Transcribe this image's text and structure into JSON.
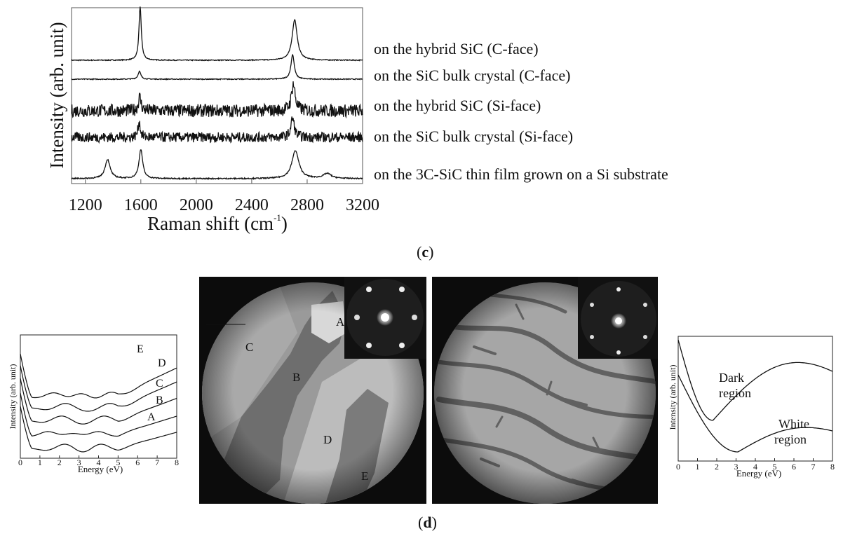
{
  "panel_c": {
    "label": "c",
    "ylabel": "Intensity (arb. unit)",
    "xlabel": "Raman shift (cm",
    "xlabel_sup": "-1",
    "xlabel_close": ")"
  },
  "panel_d": {
    "label": "d",
    "left_ylabel": "Intensity (arb. unit)",
    "left_xlabel": "Energy (eV)",
    "right_ylabel": "Intensity (arb. unit)",
    "right_xlabel": "Energy (eV)",
    "right_dark_label": [
      "Dark",
      "region"
    ],
    "right_white_label": [
      "White",
      "region"
    ],
    "leem_left_region_labels": [
      "A",
      "B",
      "C",
      "D",
      "E"
    ]
  },
  "chart_data": [
    {
      "type": "line",
      "xlim": [
        1100,
        3200
      ],
      "xticks": [
        1200,
        1600,
        2000,
        2400,
        2800,
        3200
      ],
      "xlabel": "Raman shift (cm-1)",
      "ylabel": "Intensity (arb. unit)",
      "legend_placement": "right of each trace",
      "series": [
        {
          "name": "on the hybrid SiC (C-face)",
          "noise": 0.006,
          "peaks": [
            [
              1595,
              2.4,
              10
            ],
            [
              2710,
              1.8,
              22
            ]
          ]
        },
        {
          "name": "on the SiC bulk crystal (C-face)",
          "noise": 0.006,
          "peaks": [
            [
              1590,
              0.35,
              12
            ],
            [
              2695,
              1.1,
              14
            ]
          ]
        },
        {
          "name": "on the hybrid SiC (Si-face)",
          "noise": 0.09,
          "peaks": [
            [
              1592,
              0.6,
              12
            ],
            [
              2700,
              1.2,
              16
            ]
          ]
        },
        {
          "name": "on the SiC bulk crystal (Si-face)",
          "noise": 0.07,
          "peaks": [
            [
              1588,
              0.7,
              10
            ],
            [
              2695,
              0.85,
              15
            ]
          ]
        },
        {
          "name": "on the 3C-SiC thin film grown on a Si substrate",
          "noise": 0.008,
          "peaks": [
            [
              1360,
              0.85,
              22
            ],
            [
              1600,
              1.3,
              16
            ],
            [
              2715,
              1.25,
              30
            ],
            [
              2945,
              0.22,
              35
            ]
          ]
        }
      ]
    },
    {
      "type": "line",
      "xlim": [
        0,
        8
      ],
      "xticks": [
        0,
        1,
        2,
        3,
        4,
        5,
        6,
        7,
        8
      ],
      "xlabel": "Energy (eV)",
      "ylabel": "Intensity (arb. unit)",
      "series": [
        {
          "name": "A",
          "min_positions": [
            0.6,
            2.3,
            4.1
          ],
          "end_level": 0.55
        },
        {
          "name": "B",
          "min_positions": [
            0.6,
            1.5,
            2.7,
            3.9
          ],
          "end_level": 0.62
        },
        {
          "name": "C",
          "min_positions": [
            0.6,
            2.1,
            4.3
          ],
          "end_level": 0.75
        },
        {
          "name": "D",
          "min_positions": [
            0.6,
            2.3,
            4.6
          ],
          "end_level": 0.88
        },
        {
          "name": "E",
          "min_positions": [
            0.6,
            1.8,
            3.1,
            4.6
          ],
          "end_level": 0.95
        }
      ]
    },
    {
      "type": "line",
      "xlim": [
        0,
        8
      ],
      "xticks": [
        0,
        1,
        2,
        3,
        4,
        5,
        6,
        7,
        8
      ],
      "xlabel": "Energy (eV)",
      "ylabel": "Intensity (arb. unit)",
      "series": [
        {
          "name": "Dark region",
          "minimum_eV": 1.8
        },
        {
          "name": "White region",
          "minimum_eV": 3.1
        }
      ]
    }
  ]
}
